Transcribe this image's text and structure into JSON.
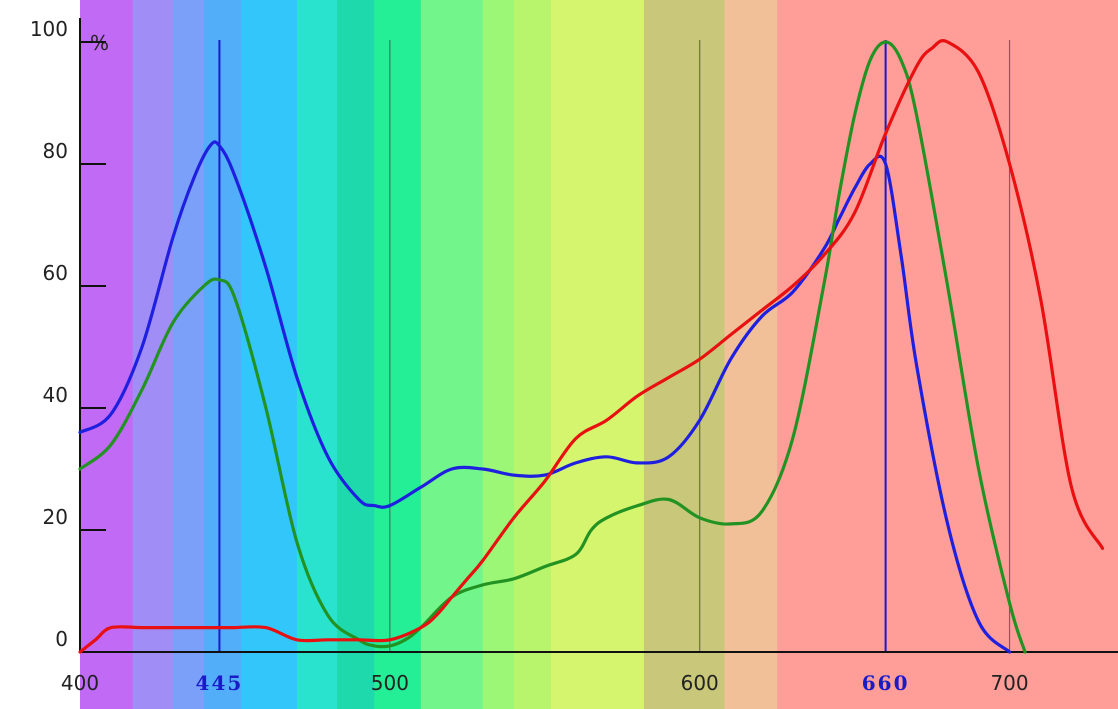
{
  "chart_data": {
    "type": "line",
    "ylabel": "%",
    "xlim": [
      400,
      735
    ],
    "ylim": [
      0,
      105
    ],
    "x_ticks": [
      {
        "value": 400,
        "label": "400",
        "highlight": false
      },
      {
        "value": 445,
        "label": "445",
        "highlight": true
      },
      {
        "value": 500,
        "label": "500",
        "highlight": false
      },
      {
        "value": 600,
        "label": "600",
        "highlight": false
      },
      {
        "value": 660,
        "label": "660",
        "highlight": true
      },
      {
        "value": 700,
        "label": "700",
        "highlight": false
      }
    ],
    "y_ticks": [
      {
        "value": 0,
        "label": "0"
      },
      {
        "value": 20,
        "label": "20"
      },
      {
        "value": 40,
        "label": "40"
      },
      {
        "value": 60,
        "label": "60"
      },
      {
        "value": 80,
        "label": "80"
      },
      {
        "value": 100,
        "label": "100"
      }
    ],
    "highlight_color": "#1a1ac8",
    "background_bands": [
      {
        "from": 400,
        "to": 417,
        "color": "#c06af5"
      },
      {
        "from": 417,
        "to": 430,
        "color": "#a08ef6"
      },
      {
        "from": 430,
        "to": 440,
        "color": "#7aa0fa"
      },
      {
        "from": 440,
        "to": 452,
        "color": "#52aef9"
      },
      {
        "from": 452,
        "to": 470,
        "color": "#33c6fb"
      },
      {
        "from": 470,
        "to": 483,
        "color": "#2ae3ce"
      },
      {
        "from": 483,
        "to": 495,
        "color": "#1ed9ac"
      },
      {
        "from": 495,
        "to": 510,
        "color": "#24ef96"
      },
      {
        "from": 510,
        "to": 530,
        "color": "#72f68c"
      },
      {
        "from": 530,
        "to": 540,
        "color": "#9bf775"
      },
      {
        "from": 540,
        "to": 552,
        "color": "#b8f56c"
      },
      {
        "from": 552,
        "to": 582,
        "color": "#d6f56e"
      },
      {
        "from": 582,
        "to": 608,
        "color": "#c8c77a"
      },
      {
        "from": 608,
        "to": 625,
        "color": "#f2c098"
      },
      {
        "from": 625,
        "to": 735,
        "color": "#ff9d98"
      }
    ],
    "series": [
      {
        "color": "#1f20df",
        "x": [
          400,
          410,
          420,
          430,
          437,
          442,
          445,
          450,
          460,
          470,
          480,
          490,
          495,
          500,
          510,
          520,
          530,
          540,
          550,
          560,
          570,
          580,
          590,
          600,
          610,
          620,
          630,
          640,
          645,
          650,
          655,
          660,
          665,
          670,
          680,
          690,
          700
        ],
        "y": [
          36,
          39,
          50,
          68,
          78,
          83,
          83,
          78,
          63,
          45,
          32,
          25,
          24,
          24,
          27,
          30,
          30,
          29,
          29,
          31,
          32,
          31,
          32,
          38,
          48,
          55,
          59,
          66,
          71,
          76,
          80,
          80,
          65,
          47,
          21,
          5,
          0
        ]
      },
      {
        "color": "#229322",
        "x": [
          400,
          410,
          420,
          430,
          440,
          445,
          450,
          460,
          470,
          480,
          490,
          495,
          500,
          505,
          510,
          520,
          530,
          540,
          550,
          560,
          565,
          570,
          580,
          590,
          600,
          610,
          620,
          630,
          640,
          645,
          650,
          655,
          660,
          665,
          670,
          680,
          690,
          700,
          705
        ],
        "y": [
          30,
          34,
          43,
          54,
          60,
          61,
          58,
          40,
          18,
          6,
          2,
          1,
          1,
          2,
          4,
          9,
          11,
          12,
          14,
          16,
          20,
          22,
          24,
          25,
          22,
          21,
          23,
          35,
          60,
          75,
          88,
          97,
          100,
          97,
          88,
          60,
          30,
          8,
          0
        ]
      },
      {
        "color": "#e81010",
        "x": [
          400,
          405,
          410,
          420,
          430,
          440,
          445,
          450,
          460,
          470,
          480,
          490,
          500,
          510,
          515,
          520,
          525,
          530,
          540,
          550,
          560,
          570,
          580,
          590,
          600,
          610,
          620,
          630,
          640,
          650,
          660,
          670,
          675,
          680,
          690,
          700,
          710,
          720,
          730
        ],
        "y": [
          0,
          2,
          4,
          4,
          4,
          4,
          4,
          4,
          4,
          2,
          2,
          2,
          2,
          4,
          6,
          9,
          12,
          15,
          22,
          28,
          35,
          38,
          42,
          45,
          48,
          52,
          56,
          60,
          65,
          72,
          85,
          96,
          99,
          100,
          95,
          80,
          58,
          27,
          17
        ]
      }
    ]
  }
}
